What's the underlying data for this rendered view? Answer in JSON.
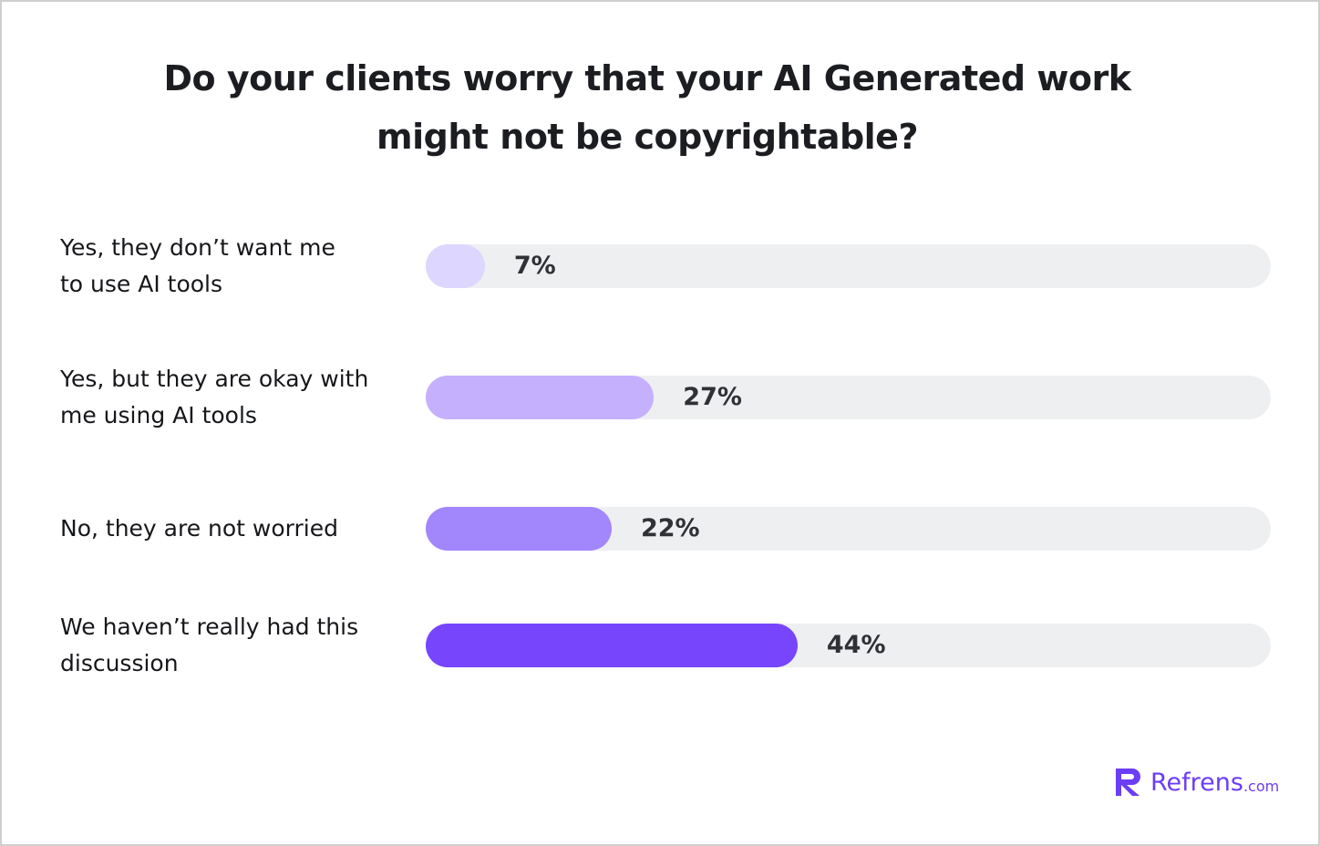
{
  "chart_data": {
    "type": "bar",
    "orientation": "horizontal",
    "title": "Do your clients worry that your AI Generated work might not be copyrightable?",
    "categories": [
      "Yes, they don’t want me to use AI tools",
      "Yes, but they are okay with me using AI tools",
      "No, they are not worried",
      "We haven’t really had this discussion"
    ],
    "values": [
      7,
      27,
      22,
      44
    ],
    "value_labels": [
      "7%",
      "27%",
      "22%",
      "44%"
    ],
    "colors": [
      "#ddd6fe",
      "#c4b0fd",
      "#a286fc",
      "#7645fc"
    ],
    "track_color": "#eeeff1",
    "xlim": [
      0,
      100
    ]
  },
  "logo": {
    "name": "Refrens",
    "suffix": ".com"
  }
}
